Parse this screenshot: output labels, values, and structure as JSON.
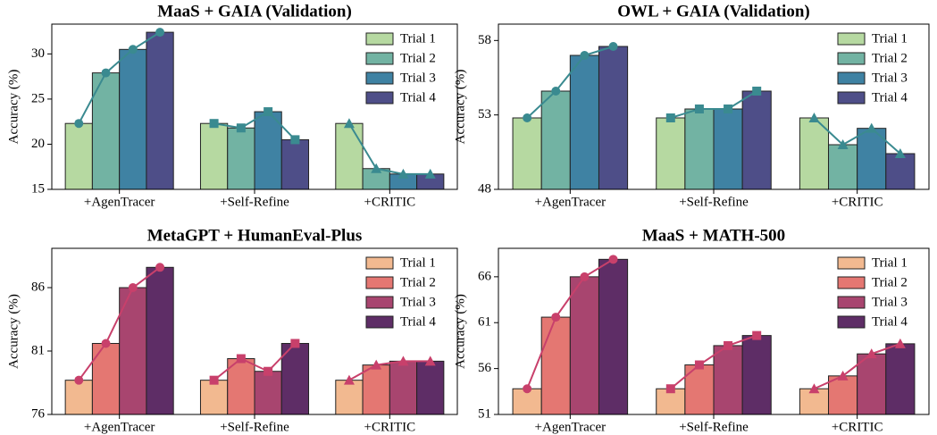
{
  "chart_data": [
    {
      "type": "bar",
      "title": "MaaS + GAIA (Validation)",
      "y_label": "Accuracy (%)",
      "categories": [
        "+AgenTracer",
        "+Self-Refine",
        "+CRITIC"
      ],
      "series": [
        {
          "name": "Trial 1",
          "color": "#b6d9a1",
          "values": [
            22.3,
            22.3,
            22.3
          ]
        },
        {
          "name": "Trial 2",
          "color": "#72b3a3",
          "values": [
            27.9,
            21.8,
            17.3
          ]
        },
        {
          "name": "Trial 3",
          "color": "#3f82a3",
          "values": [
            30.5,
            23.6,
            16.7
          ]
        },
        {
          "name": "Trial 4",
          "color": "#4e4e88",
          "values": [
            32.4,
            20.5,
            16.7
          ]
        }
      ],
      "line_color": "#3a8a90",
      "line_markers": [
        "circle",
        "square",
        "triangle"
      ],
      "ylim": [
        15,
        33.3
      ],
      "yticks": [
        15,
        20,
        25,
        30
      ],
      "legend": "upper right"
    },
    {
      "type": "bar",
      "title": "OWL + GAIA (Validation)",
      "y_label": "Accuracy (%)",
      "categories": [
        "+AgenTracer",
        "+Self-Refine",
        "+CRITIC"
      ],
      "series": [
        {
          "name": "Trial 1",
          "color": "#b6d9a1",
          "values": [
            52.8,
            52.8,
            52.8
          ]
        },
        {
          "name": "Trial 2",
          "color": "#72b3a3",
          "values": [
            54.6,
            53.4,
            51.0
          ]
        },
        {
          "name": "Trial 3",
          "color": "#3f82a3",
          "values": [
            57.0,
            53.4,
            52.1
          ]
        },
        {
          "name": "Trial 4",
          "color": "#4e4e88",
          "values": [
            57.6,
            54.6,
            50.4
          ]
        }
      ],
      "line_color": "#3a8a90",
      "line_markers": [
        "circle",
        "square",
        "triangle"
      ],
      "ylim": [
        48,
        59.1
      ],
      "yticks": [
        48,
        53,
        58
      ],
      "legend": "upper right"
    },
    {
      "type": "bar",
      "title": "MetaGPT + HumanEval-Plus",
      "y_label": "Accuracy (%)",
      "categories": [
        "+AgenTracer",
        "+Self-Refine",
        "+CRITIC"
      ],
      "series": [
        {
          "name": "Trial 1",
          "color": "#f2b990",
          "values": [
            78.7,
            78.7,
            78.7
          ]
        },
        {
          "name": "Trial 2",
          "color": "#e47772",
          "values": [
            81.6,
            80.4,
            79.9
          ]
        },
        {
          "name": "Trial 3",
          "color": "#a8456f",
          "values": [
            86.0,
            79.4,
            80.2
          ]
        },
        {
          "name": "Trial 4",
          "color": "#5e2d66",
          "values": [
            87.6,
            81.6,
            80.2
          ]
        }
      ],
      "line_color": "#c8406b",
      "line_markers": [
        "circle",
        "square",
        "triangle"
      ],
      "ylim": [
        76,
        89.1
      ],
      "yticks": [
        76,
        81,
        86
      ],
      "legend": "upper right"
    },
    {
      "type": "bar",
      "title": "MaaS + MATH-500",
      "y_label": "Accuracy (%)",
      "categories": [
        "+AgenTracer",
        "+Self-Refine",
        "+CRITIC"
      ],
      "series": [
        {
          "name": "Trial 1",
          "color": "#f2b990",
          "values": [
            53.8,
            53.8,
            53.8
          ]
        },
        {
          "name": "Trial 2",
          "color": "#e47772",
          "values": [
            61.6,
            56.4,
            55.2
          ]
        },
        {
          "name": "Trial 3",
          "color": "#a8456f",
          "values": [
            66.0,
            58.5,
            57.6
          ]
        },
        {
          "name": "Trial 4",
          "color": "#5e2d66",
          "values": [
            67.9,
            59.6,
            58.7
          ]
        }
      ],
      "line_color": "#c8406b",
      "line_markers": [
        "circle",
        "square",
        "triangle"
      ],
      "ylim": [
        51,
        69.1
      ],
      "yticks": [
        51,
        56,
        61,
        66
      ],
      "legend": "upper right"
    }
  ]
}
